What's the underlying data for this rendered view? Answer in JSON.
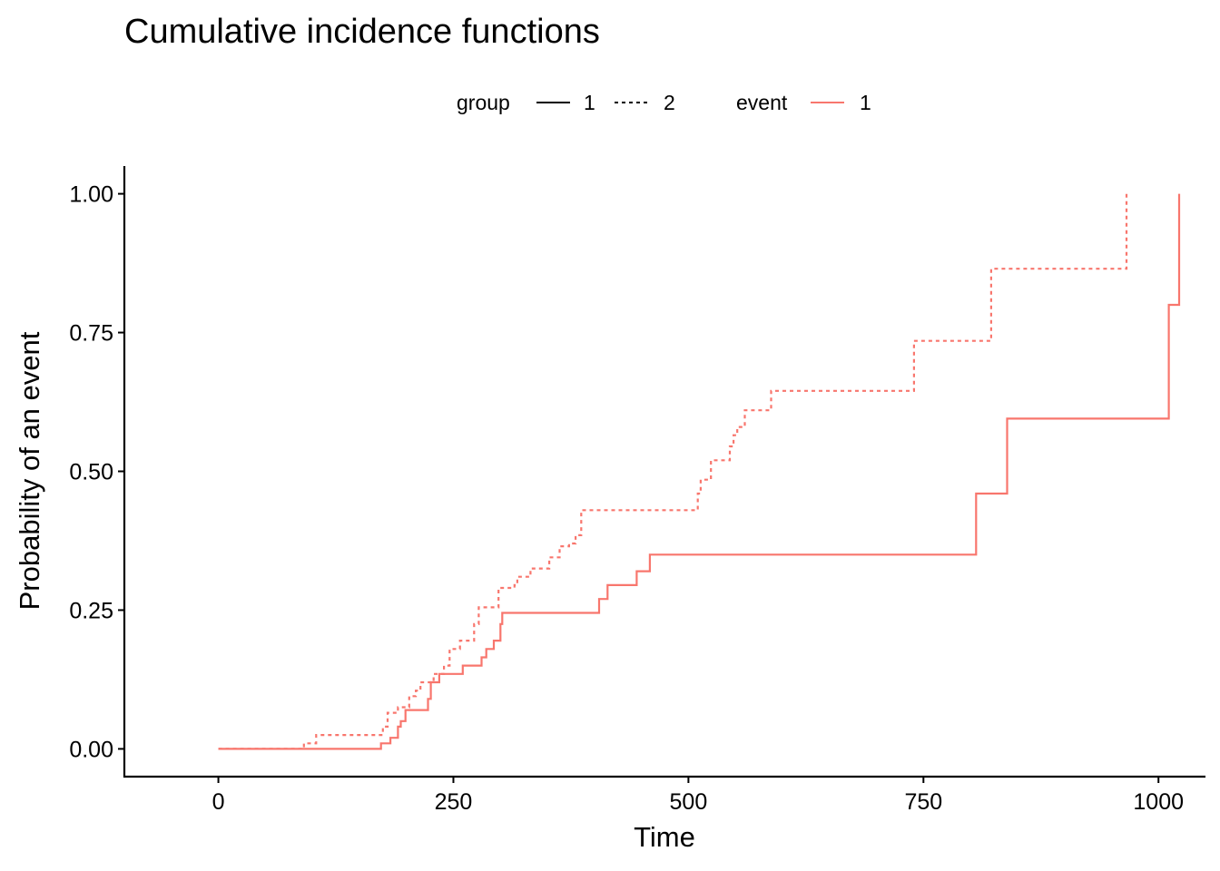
{
  "chart_data": {
    "type": "line",
    "title": "Cumulative incidence functions",
    "xlabel": "Time",
    "ylabel": "Probability of an event",
    "xlim": [
      -100,
      1050
    ],
    "ylim": [
      -0.05,
      1.05
    ],
    "x_ticks": [
      0,
      250,
      500,
      750,
      1000
    ],
    "x_tick_labels": [
      "0",
      "250",
      "500",
      "750",
      "1000"
    ],
    "y_ticks": [
      0,
      0.25,
      0.5,
      0.75,
      1.0
    ],
    "y_tick_labels": [
      "0.00",
      "0.25",
      "0.50",
      "0.75",
      "1.00"
    ],
    "grid": false,
    "step": true,
    "line_color": "#F8766D",
    "legend": {
      "placement": "top",
      "groups": [
        {
          "title": "group",
          "entries": [
            {
              "label": "1",
              "linetype": "solid"
            },
            {
              "label": "2",
              "linetype": "dashed"
            }
          ]
        },
        {
          "title": "event",
          "entries": [
            {
              "label": "1",
              "linetype": "solid",
              "color": "#F8766D"
            }
          ]
        }
      ]
    },
    "series": [
      {
        "group": "1",
        "event": "1",
        "linetype": "solid",
        "points": [
          [
            0,
            0.0
          ],
          [
            173,
            0.01
          ],
          [
            183,
            0.02
          ],
          [
            191,
            0.04
          ],
          [
            194,
            0.05
          ],
          [
            199,
            0.07
          ],
          [
            223,
            0.09
          ],
          [
            226,
            0.12
          ],
          [
            235,
            0.135
          ],
          [
            260,
            0.15
          ],
          [
            280,
            0.165
          ],
          [
            285,
            0.18
          ],
          [
            293,
            0.195
          ],
          [
            300,
            0.225
          ],
          [
            302,
            0.245
          ],
          [
            405,
            0.27
          ],
          [
            414,
            0.295
          ],
          [
            445,
            0.32
          ],
          [
            459,
            0.35
          ],
          [
            806,
            0.46
          ],
          [
            839,
            0.595
          ],
          [
            1011,
            0.8
          ],
          [
            1022,
            1.0
          ]
        ]
      },
      {
        "group": "2",
        "event": "1",
        "linetype": "dashed",
        "points": [
          [
            0,
            0.0
          ],
          [
            91,
            0.01
          ],
          [
            104,
            0.025
          ],
          [
            175,
            0.04
          ],
          [
            180,
            0.065
          ],
          [
            191,
            0.075
          ],
          [
            203,
            0.095
          ],
          [
            210,
            0.105
          ],
          [
            215,
            0.12
          ],
          [
            229,
            0.135
          ],
          [
            240,
            0.15
          ],
          [
            246,
            0.18
          ],
          [
            257,
            0.195
          ],
          [
            272,
            0.225
          ],
          [
            277,
            0.255
          ],
          [
            298,
            0.29
          ],
          [
            315,
            0.295
          ],
          [
            318,
            0.31
          ],
          [
            332,
            0.325
          ],
          [
            352,
            0.345
          ],
          [
            363,
            0.365
          ],
          [
            373,
            0.37
          ],
          [
            380,
            0.385
          ],
          [
            386,
            0.43
          ],
          [
            510,
            0.46
          ],
          [
            513,
            0.485
          ],
          [
            524,
            0.52
          ],
          [
            544,
            0.545
          ],
          [
            548,
            0.565
          ],
          [
            552,
            0.58
          ],
          [
            560,
            0.61
          ],
          [
            588,
            0.645
          ],
          [
            740,
            0.735
          ],
          [
            822,
            0.865
          ],
          [
            966,
            1.0
          ]
        ]
      }
    ]
  }
}
